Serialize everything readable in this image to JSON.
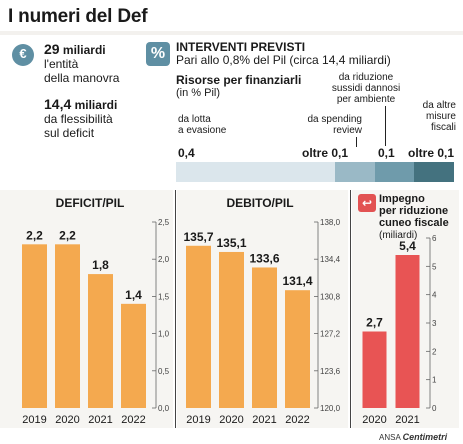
{
  "title": "I numeri del Def",
  "info": {
    "item1": {
      "value": "29",
      "unit": "miliardi",
      "line1": "l'entità",
      "line2": "della manovra"
    },
    "item2": {
      "value": "14,4",
      "unit": "miliardi",
      "line1": "da flessibilità",
      "line2": "sul deficit"
    }
  },
  "interventi": {
    "title": "INTERVENTI PREVISTI",
    "subtitle": "Pari allo 0,8% del Pil (circa 14,4 miliardi)",
    "risorse_title": "Risorse per finanziarli",
    "risorse_sub": "(in % Pil)",
    "segments": [
      {
        "label_1": "da lotta",
        "label_2": "a evasione",
        "label_3": "",
        "value": "0,4",
        "share": 0.4,
        "color": "#dbe6ec"
      },
      {
        "label_1": "da spending",
        "label_2": "review",
        "label_3": "",
        "value": "oltre 0,1",
        "share": 0.1,
        "color": "#9ab9c6"
      },
      {
        "label_1": "da riduzione",
        "label_2": "sussidi dannosi",
        "label_3": "per ambiente",
        "value": "0,1",
        "share": 0.1,
        "color": "#6f9bab"
      },
      {
        "label_1": "da altre",
        "label_2": "misure",
        "label_3": "fiscali",
        "value": "oltre 0,1",
        "share": 0.1,
        "color": "#44727f"
      }
    ]
  },
  "panels": {
    "deficit_title": "DEFICIT/PIL",
    "debito_title": "DEBITO/PIL",
    "impegno_title_1": "Impegno",
    "impegno_title_2": "per riduzione",
    "impegno_title_3": "cuneo fiscale",
    "impegno_sub": "(miliardi)",
    "source_prefix": "ANSA",
    "source_brand": "Centimetri"
  },
  "chart_data": [
    {
      "type": "bar",
      "title": "DEFICIT/PIL",
      "categories": [
        "2019",
        "2020",
        "2021",
        "2022"
      ],
      "values": [
        2.2,
        2.2,
        1.8,
        1.4
      ],
      "value_labels": [
        "2,2",
        "2,2",
        "1,8",
        "1,4"
      ],
      "ylim": [
        0,
        2.5
      ],
      "yticks": [
        0,
        0.5,
        1.0,
        1.5,
        2.0,
        2.5
      ],
      "ytick_labels": [
        "0,0",
        "0,5",
        "1,0",
        "1,5",
        "2,0",
        "2,5"
      ],
      "color": "#f4a94f"
    },
    {
      "type": "bar",
      "title": "DEBITO/PIL",
      "categories": [
        "2019",
        "2020",
        "2021",
        "2022"
      ],
      "values": [
        135.7,
        135.1,
        133.6,
        131.4
      ],
      "value_labels": [
        "135,7",
        "135,1",
        "133,6",
        "131,4"
      ],
      "ylim": [
        120.0,
        138.0
      ],
      "yticks": [
        120.0,
        123.6,
        127.2,
        130.8,
        134.4,
        138.0
      ],
      "ytick_labels": [
        "120,0",
        "123,6",
        "127,2",
        "130,8",
        "134,4",
        "138,0"
      ],
      "color": "#f4a94f"
    },
    {
      "type": "bar",
      "title": "Impegno per riduzione cuneo fiscale (miliardi)",
      "categories": [
        "2020",
        "2021"
      ],
      "values": [
        2.7,
        5.4
      ],
      "value_labels": [
        "2,7",
        "5,4"
      ],
      "ylim": [
        0,
        6
      ],
      "yticks": [
        0,
        1,
        2,
        3,
        4,
        5,
        6
      ],
      "ytick_labels": [
        "0",
        "1",
        "2",
        "3",
        "4",
        "5",
        "6"
      ],
      "color": "#e85454"
    }
  ]
}
